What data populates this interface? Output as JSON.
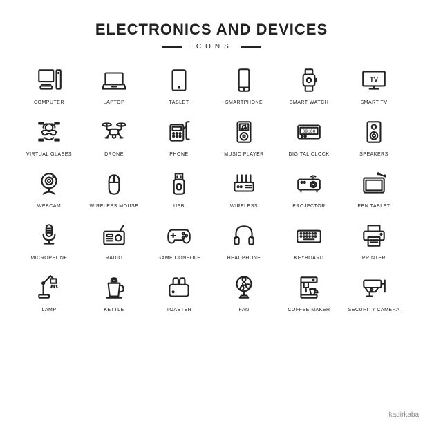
{
  "header": {
    "title": "ELECTRONICS AND DEVICES",
    "subtitle": "ICONS"
  },
  "style": {
    "background_color": "#ffffff",
    "stroke_color": "#222222",
    "stroke_width": 2,
    "title_fontsize": 22,
    "subtitle_fontsize": 10,
    "label_fontsize": 7,
    "grid_cols": 6,
    "grid_rows": 5,
    "icon_box": 42
  },
  "icons": [
    {
      "name": "computer-icon",
      "label": "COMPUTER"
    },
    {
      "name": "laptop-icon",
      "label": "LAPTOP"
    },
    {
      "name": "tablet-icon",
      "label": "TABLET"
    },
    {
      "name": "smartphone-icon",
      "label": "SMARTPHONE"
    },
    {
      "name": "smart-watch-icon",
      "label": "SMART WATCH"
    },
    {
      "name": "smart-tv-icon",
      "label": "SMART TV"
    },
    {
      "name": "virtual-glasses-icon",
      "label": "VIRTUAL GLASES"
    },
    {
      "name": "drone-icon",
      "label": "DRONE"
    },
    {
      "name": "phone-icon",
      "label": "PHONE"
    },
    {
      "name": "music-player-icon",
      "label": "MUSIC PLAYER"
    },
    {
      "name": "digital-clock-icon",
      "label": "DIGITAL CLOCK"
    },
    {
      "name": "speakers-icon",
      "label": "SPEAKERS"
    },
    {
      "name": "webcam-icon",
      "label": "WEBCAM"
    },
    {
      "name": "wireless-mouse-icon",
      "label": "WIRELESS MOUSE"
    },
    {
      "name": "usb-icon",
      "label": "USB"
    },
    {
      "name": "wireless-icon",
      "label": "WIRELESS"
    },
    {
      "name": "projector-icon",
      "label": "PROJECTOR"
    },
    {
      "name": "pen-tablet-icon",
      "label": "PEN TABLET"
    },
    {
      "name": "microphone-icon",
      "label": "MICROPHONE"
    },
    {
      "name": "radio-icon",
      "label": "RADIO"
    },
    {
      "name": "game-console-icon",
      "label": "GAME CONSOLE"
    },
    {
      "name": "headphone-icon",
      "label": "HEADPHONE"
    },
    {
      "name": "keyboard-icon",
      "label": "KEYBOARD"
    },
    {
      "name": "printer-icon",
      "label": "PRINTER"
    },
    {
      "name": "lamp-icon",
      "label": "LAMP"
    },
    {
      "name": "kettle-icon",
      "label": "KETTLE"
    },
    {
      "name": "toaster-icon",
      "label": "TOASTER"
    },
    {
      "name": "fan-icon",
      "label": "FAN"
    },
    {
      "name": "coffee-maker-icon",
      "label": "COFFEE MAKER"
    },
    {
      "name": "security-camera-icon",
      "label": "SECURITY CAMERA"
    }
  ],
  "credit": "kadirkaba"
}
